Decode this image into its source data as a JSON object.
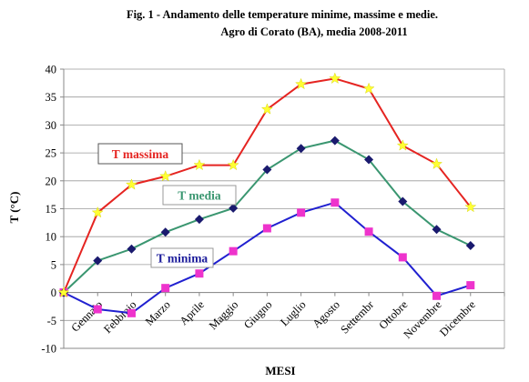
{
  "chart_data": {
    "type": "line",
    "title": "Fig. 1 - Andamento delle temperature minime,  massime  e medie.",
    "subtitle": "Agro di Corato (BA), media 2008-2011",
    "xlabel": "MESI",
    "ylabel": "T (°C)",
    "ylim": [
      -10,
      40
    ],
    "ytick_step": 5,
    "yticks": [
      "-10",
      "-5",
      "0",
      "5",
      "10",
      "15",
      "20",
      "25",
      "30",
      "35",
      "40"
    ],
    "categories": [
      "Gennaio",
      "Febbraio",
      "Marzo",
      "Aprile",
      "Maggio",
      "Giugno",
      "Luglio",
      "Agosto",
      "Settembr",
      "Ottobre",
      "Novembre",
      "Dicembre"
    ],
    "x0_label": "",
    "grid": "horizontal",
    "series": [
      {
        "name": "T massima",
        "color": "#e52421",
        "marker": "star",
        "marker_color": "#ffff33",
        "x0_value": 0,
        "values": [
          14.3,
          19.3,
          20.8,
          22.8,
          22.8,
          32.8,
          37.3,
          38.3,
          36.5,
          26.3,
          23.0,
          15.3
        ]
      },
      {
        "name": "T media",
        "color": "#3a9670",
        "marker": "diamond",
        "marker_color": "#1a1a6e",
        "x0_value": 0,
        "values": [
          5.7,
          7.8,
          10.8,
          13.1,
          15.1,
          22.0,
          25.8,
          27.2,
          23.8,
          16.3,
          11.3,
          8.4
        ]
      },
      {
        "name": "T minima",
        "color": "#2020d0",
        "marker": "square",
        "marker_color": "#ee33cc",
        "x0_value": 0,
        "values": [
          -3.0,
          -3.7,
          0.8,
          3.4,
          7.4,
          11.5,
          14.3,
          16.1,
          10.9,
          6.3,
          -0.6,
          1.3
        ]
      }
    ],
    "series_labels": [
      {
        "text": "T massima",
        "color": "#e52421",
        "border": "#555555"
      },
      {
        "text": "T media",
        "color": "#3a9670",
        "border": "#999999"
      },
      {
        "text": "T minima",
        "color": "#1a1a9a",
        "border": "#999999"
      }
    ]
  }
}
